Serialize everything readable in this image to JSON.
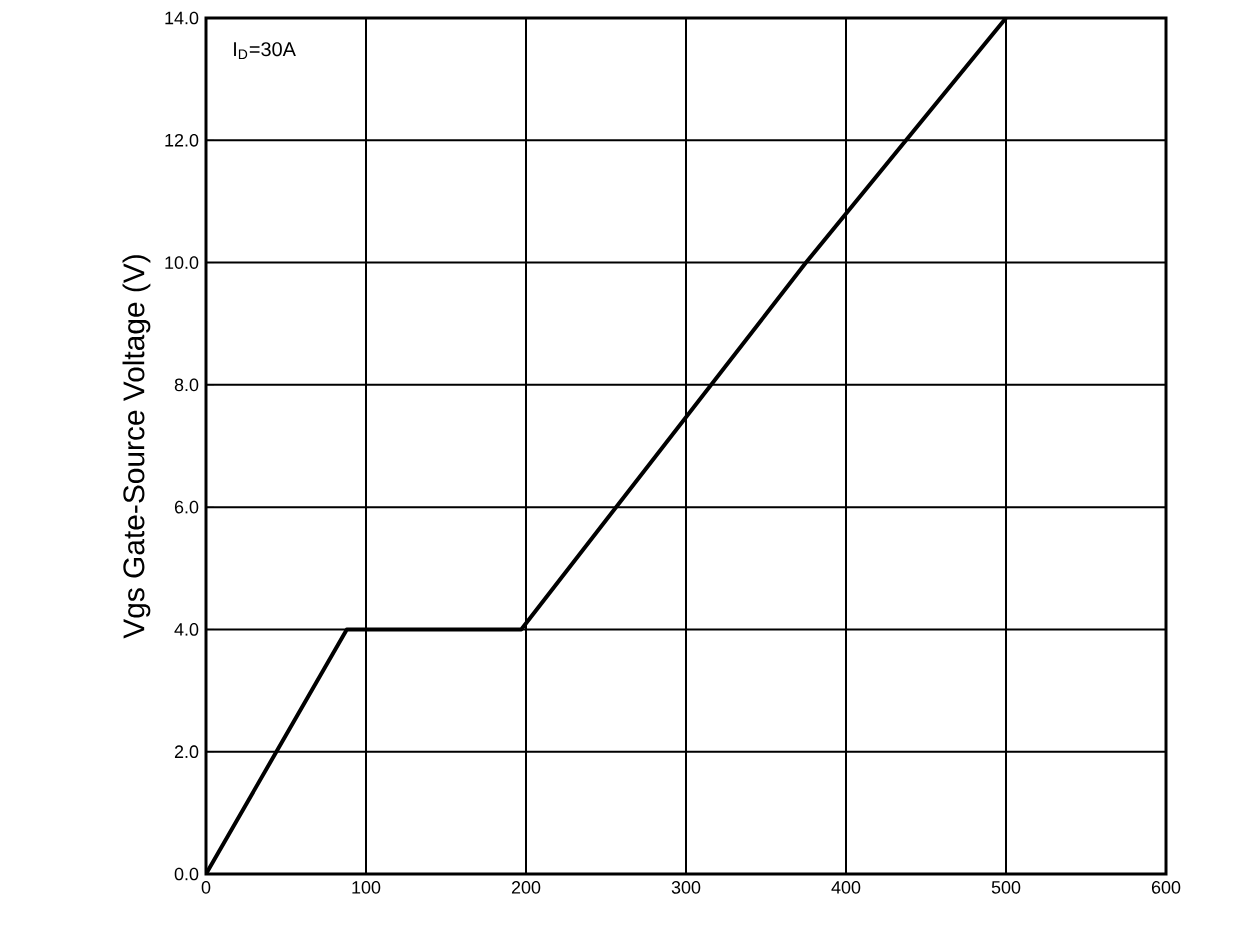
{
  "chart_data": {
    "type": "line",
    "ylabel": "Vgs Gate-Source Voltage (V)",
    "annotations": [
      "I$_{D}$=30A"
    ],
    "x": [
      0,
      88,
      197,
      375,
      500
    ],
    "series": [
      {
        "color": "#000000",
        "values": [
          0,
          4.0,
          4.0,
          10.0,
          14.0
        ]
      }
    ],
    "xlim": [
      0,
      600
    ],
    "ylim": [
      0,
      14
    ],
    "xticks": [
      0,
      100,
      200,
      300,
      400,
      500,
      600
    ],
    "yticks": [
      {
        "value": 0,
        "label": "0.0"
      },
      {
        "value": 2,
        "label": "2.0"
      },
      {
        "value": 4,
        "label": "4.0"
      },
      {
        "value": 6,
        "label": "6.0"
      },
      {
        "value": 8,
        "label": "8.0"
      },
      {
        "value": 10,
        "label": "10.0"
      },
      {
        "value": 12,
        "label": "12.0"
      },
      {
        "value": 14,
        "label": "14.0"
      }
    ],
    "grid": true,
    "marker": "none",
    "line_style": "solid"
  }
}
